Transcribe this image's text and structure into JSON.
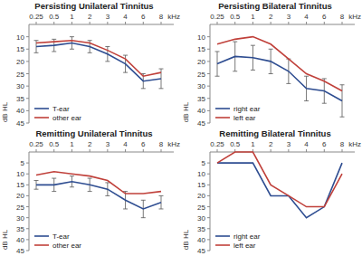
{
  "chart_data": [
    {
      "type": "line",
      "title": "Persisting Unilateral Tinnitus",
      "x_label": "kHz",
      "y_label": "dB HL",
      "categories": [
        "0.25",
        "0.5",
        "1",
        "2",
        "3",
        "4",
        "6",
        "8"
      ],
      "ylim": [
        45,
        5
      ],
      "yticks": [
        10,
        15,
        20,
        25,
        30,
        35,
        40,
        45
      ],
      "legend": "lower left",
      "series": [
        {
          "name": "T-ear",
          "color": "#2e4d91",
          "values": [
            14,
            13.5,
            12.5,
            14,
            17,
            21,
            28,
            27
          ],
          "errors": [
            2.5,
            2.5,
            2.5,
            2.5,
            3,
            3.5,
            3,
            4
          ]
        },
        {
          "name": "other ear",
          "color": "#c0403a",
          "values": [
            12.5,
            12,
            11.5,
            12.5,
            15.5,
            19,
            26,
            24.5
          ]
        }
      ]
    },
    {
      "type": "line",
      "title": "Persisting Bilateral Tinnitus",
      "x_label": "kHz",
      "y_label": "dB HL",
      "categories": [
        "0.25",
        "0.5",
        "1",
        "2",
        "3",
        "4",
        "6",
        "8"
      ],
      "ylim": [
        45,
        5
      ],
      "yticks": [
        10,
        15,
        20,
        25,
        30,
        35,
        40,
        45
      ],
      "legend": "lower left",
      "series": [
        {
          "name": "right ear",
          "color": "#2e4d91",
          "values": [
            21,
            18,
            18.5,
            20,
            24,
            31,
            32,
            36
          ],
          "errors": [
            5,
            6,
            5,
            5,
            5,
            5,
            5,
            6.5
          ]
        },
        {
          "name": "left ear",
          "color": "#c0403a",
          "values": [
            13,
            11,
            10,
            13,
            19,
            25,
            28,
            32
          ]
        }
      ]
    },
    {
      "type": "line",
      "title": "Remitting Unilateral Tinnitus",
      "x_label": "kHz",
      "y_label": "dB HL",
      "categories": [
        "0.25",
        "0.5",
        "1",
        "2",
        "3",
        "4",
        "6",
        "8"
      ],
      "ylim": [
        45,
        0
      ],
      "yticks": [
        5,
        10,
        15,
        20,
        25,
        30,
        35,
        40,
        45
      ],
      "legend": "lower left",
      "series": [
        {
          "name": "T-ear",
          "color": "#2e4d91",
          "values": [
            15,
            15,
            13.5,
            15,
            17,
            22,
            26,
            23
          ],
          "errors": [
            2,
            3,
            2.5,
            3,
            3,
            4,
            4,
            3
          ]
        },
        {
          "name": "other ear",
          "color": "#c0403a",
          "values": [
            10.5,
            9,
            10,
            11,
            13,
            19,
            19,
            18
          ]
        }
      ]
    },
    {
      "type": "line",
      "title": "Remitting Bilateral Tinnitus",
      "x_label": "kHz",
      "y_label": "dB HL",
      "categories": [
        "0.25",
        "0.5",
        "1",
        "2",
        "3",
        "4",
        "6",
        "8"
      ],
      "ylim": [
        45,
        0
      ],
      "yticks": [
        5,
        10,
        15,
        20,
        25,
        30,
        35,
        40,
        45
      ],
      "legend": "lower left",
      "series": [
        {
          "name": "right ear",
          "color": "#2e4d91",
          "values": [
            5,
            5,
            5,
            20,
            20,
            30,
            25,
            5
          ]
        },
        {
          "name": "left ear",
          "color": "#c0403a",
          "values": [
            5,
            0,
            0,
            15,
            20,
            25,
            25,
            10
          ]
        }
      ]
    }
  ]
}
